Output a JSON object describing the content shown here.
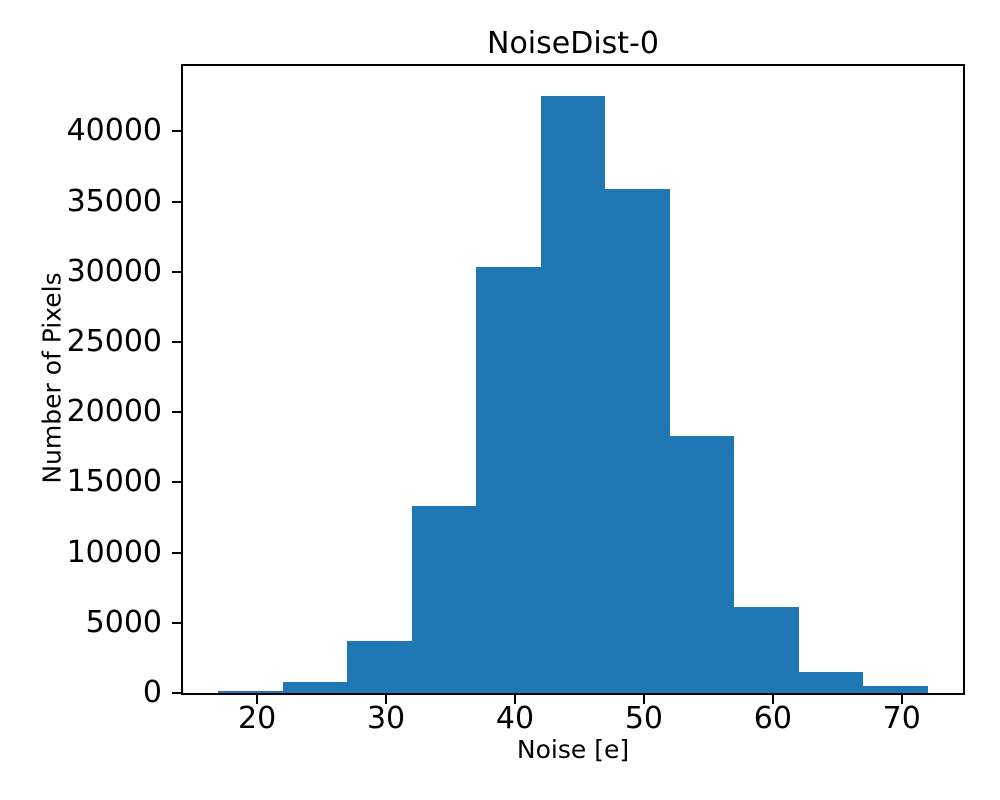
{
  "title": "NoiseDist-0",
  "xlabel": "Noise [e]",
  "ylabel": "Number of Pixels",
  "colors": {
    "bar": "#1f77b4",
    "axis": "#000000",
    "background": "#ffffff"
  },
  "chart_data": {
    "type": "bar",
    "subtype": "histogram",
    "title": "NoiseDist-0",
    "xlabel": "Noise [e]",
    "ylabel": "Number of Pixels",
    "bin_edges": [
      17,
      22,
      27,
      32,
      37,
      42,
      47,
      52,
      57,
      62,
      67,
      72
    ],
    "counts": [
      140,
      760,
      3690,
      13300,
      30350,
      42500,
      35900,
      18300,
      6100,
      1500,
      520
    ],
    "xlim": [
      14.25,
      74.75
    ],
    "ylim": [
      0,
      44660
    ],
    "x_ticks": [
      20,
      30,
      40,
      50,
      60,
      70
    ],
    "y_ticks": [
      0,
      5000,
      10000,
      15000,
      20000,
      25000,
      30000,
      35000,
      40000
    ],
    "grid": false,
    "legend": null
  }
}
